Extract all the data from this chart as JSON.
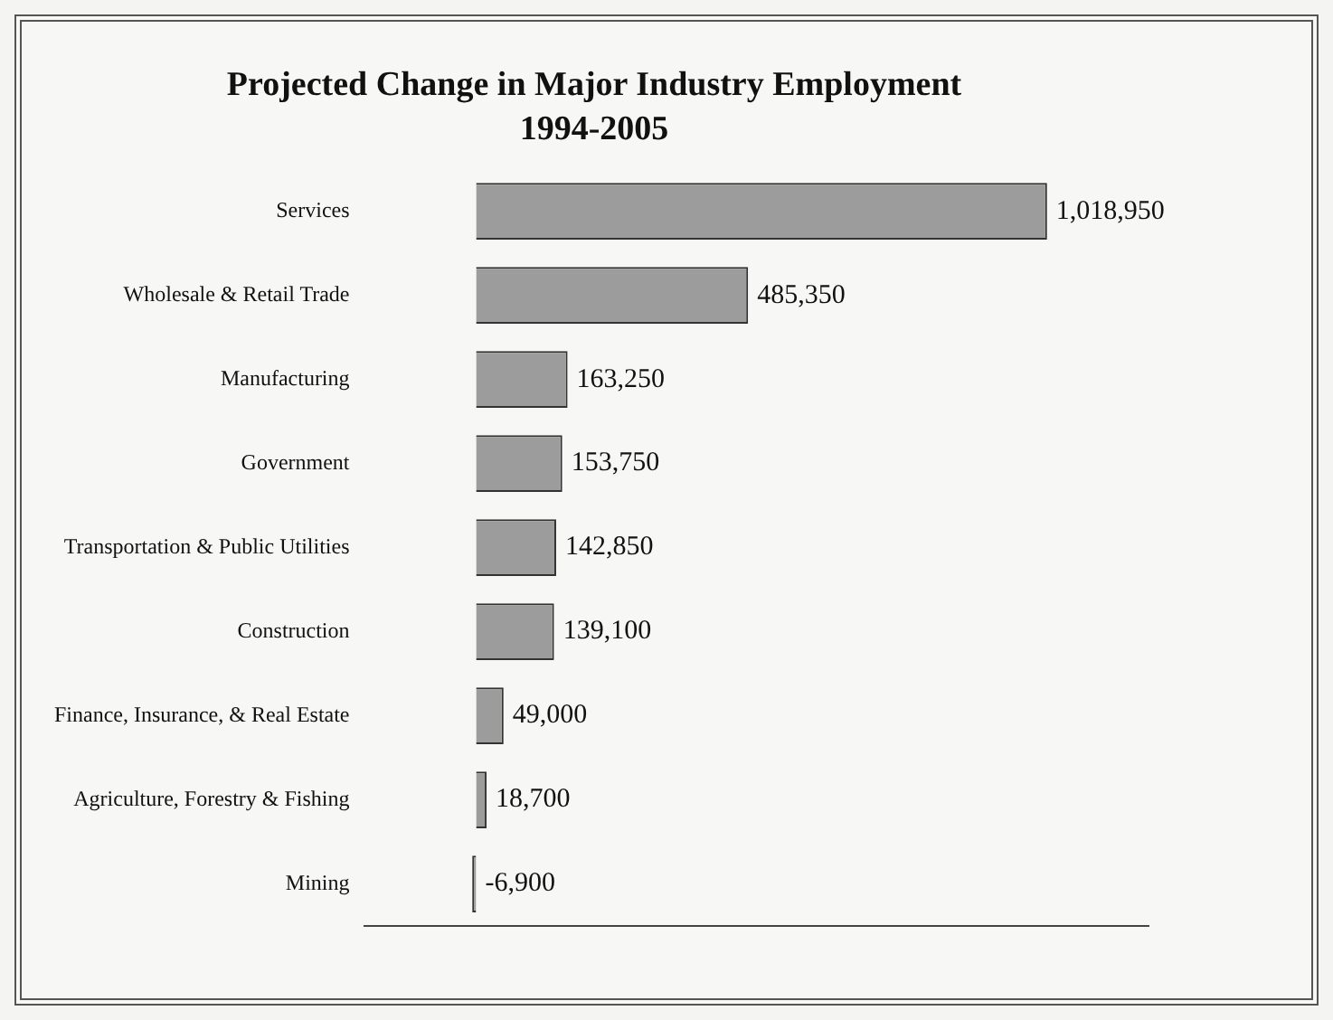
{
  "chart_data": {
    "type": "bar",
    "orientation": "horizontal",
    "title": "Projected Change in Major Industry Employment",
    "subtitle": "1994-2005",
    "categories": [
      "Services",
      "Wholesale & Retail Trade",
      "Manufacturing",
      "Government",
      "Transportation & Public Utilities",
      "Construction",
      "Finance, Insurance, & Real Estate",
      "Agriculture, Forestry & Fishing",
      "Mining"
    ],
    "values": [
      1018950,
      485350,
      163250,
      153750,
      142850,
      139100,
      49000,
      18700,
      -6900
    ],
    "value_labels": [
      "1,018,950",
      "485,350",
      "163,250",
      "153,750",
      "142,850",
      "139,100",
      "49,000",
      "18,700",
      "-6,900"
    ],
    "color": "#9c9c9c",
    "tick_labels": "y",
    "grid": false,
    "legend": false
  }
}
